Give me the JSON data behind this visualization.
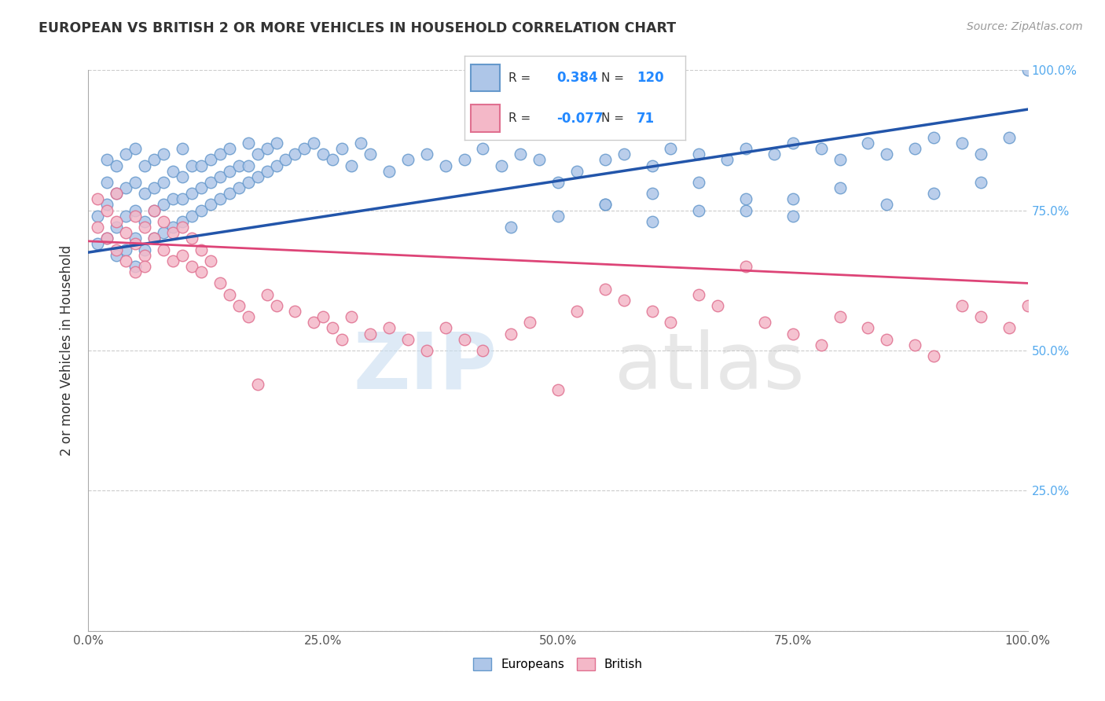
{
  "title": "EUROPEAN VS BRITISH 2 OR MORE VEHICLES IN HOUSEHOLD CORRELATION CHART",
  "source": "Source: ZipAtlas.com",
  "ylabel": "2 or more Vehicles in Household",
  "xlim": [
    0.0,
    1.0
  ],
  "ylim": [
    0.0,
    1.0
  ],
  "x_ticks": [
    0.0,
    0.25,
    0.5,
    0.75,
    1.0
  ],
  "y_ticks": [
    0.0,
    0.25,
    0.5,
    0.75,
    1.0
  ],
  "x_tick_labels": [
    "0.0%",
    "25.0%",
    "50.0%",
    "75.0%",
    "100.0%"
  ],
  "y_tick_labels": [
    "",
    "25.0%",
    "50.0%",
    "75.0%",
    "100.0%"
  ],
  "european_color": "#aec6e8",
  "british_color": "#f4b8c8",
  "european_edge_color": "#6699cc",
  "british_edge_color": "#e07090",
  "european_line_color": "#2255aa",
  "british_line_color": "#dd4477",
  "R_european": 0.384,
  "N_european": 120,
  "R_british": -0.077,
  "N_british": 71,
  "background_color": "#ffffff",
  "watermark_1": "ZIP",
  "watermark_2": "atlas",
  "eu_x": [
    0.01,
    0.01,
    0.02,
    0.02,
    0.02,
    0.02,
    0.03,
    0.03,
    0.03,
    0.03,
    0.04,
    0.04,
    0.04,
    0.04,
    0.05,
    0.05,
    0.05,
    0.05,
    0.05,
    0.06,
    0.06,
    0.06,
    0.06,
    0.07,
    0.07,
    0.07,
    0.07,
    0.08,
    0.08,
    0.08,
    0.08,
    0.09,
    0.09,
    0.09,
    0.1,
    0.1,
    0.1,
    0.1,
    0.11,
    0.11,
    0.11,
    0.12,
    0.12,
    0.12,
    0.13,
    0.13,
    0.13,
    0.14,
    0.14,
    0.14,
    0.15,
    0.15,
    0.15,
    0.16,
    0.16,
    0.17,
    0.17,
    0.17,
    0.18,
    0.18,
    0.19,
    0.19,
    0.2,
    0.2,
    0.21,
    0.22,
    0.23,
    0.24,
    0.25,
    0.26,
    0.27,
    0.28,
    0.29,
    0.3,
    0.32,
    0.34,
    0.36,
    0.38,
    0.4,
    0.42,
    0.44,
    0.46,
    0.48,
    0.5,
    0.52,
    0.55,
    0.57,
    0.6,
    0.62,
    0.65,
    0.68,
    0.7,
    0.73,
    0.75,
    0.78,
    0.8,
    0.83,
    0.85,
    0.88,
    0.9,
    0.93,
    0.95,
    0.98,
    1.0,
    0.55,
    0.6,
    0.65,
    0.7,
    0.75,
    0.8,
    0.85,
    0.9,
    0.95,
    0.45,
    0.5,
    0.55,
    0.6,
    0.65,
    0.7,
    0.75
  ],
  "eu_y": [
    0.69,
    0.74,
    0.7,
    0.76,
    0.8,
    0.84,
    0.67,
    0.72,
    0.78,
    0.83,
    0.68,
    0.74,
    0.79,
    0.85,
    0.65,
    0.7,
    0.75,
    0.8,
    0.86,
    0.68,
    0.73,
    0.78,
    0.83,
    0.7,
    0.75,
    0.79,
    0.84,
    0.71,
    0.76,
    0.8,
    0.85,
    0.72,
    0.77,
    0.82,
    0.73,
    0.77,
    0.81,
    0.86,
    0.74,
    0.78,
    0.83,
    0.75,
    0.79,
    0.83,
    0.76,
    0.8,
    0.84,
    0.77,
    0.81,
    0.85,
    0.78,
    0.82,
    0.86,
    0.79,
    0.83,
    0.8,
    0.83,
    0.87,
    0.81,
    0.85,
    0.82,
    0.86,
    0.83,
    0.87,
    0.84,
    0.85,
    0.86,
    0.87,
    0.85,
    0.84,
    0.86,
    0.83,
    0.87,
    0.85,
    0.82,
    0.84,
    0.85,
    0.83,
    0.84,
    0.86,
    0.83,
    0.85,
    0.84,
    0.8,
    0.82,
    0.84,
    0.85,
    0.83,
    0.86,
    0.85,
    0.84,
    0.86,
    0.85,
    0.87,
    0.86,
    0.84,
    0.87,
    0.85,
    0.86,
    0.88,
    0.87,
    0.85,
    0.88,
    1.0,
    0.76,
    0.78,
    0.8,
    0.75,
    0.77,
    0.79,
    0.76,
    0.78,
    0.8,
    0.72,
    0.74,
    0.76,
    0.73,
    0.75,
    0.77,
    0.74
  ],
  "br_x": [
    0.01,
    0.01,
    0.02,
    0.02,
    0.03,
    0.03,
    0.03,
    0.04,
    0.04,
    0.05,
    0.05,
    0.05,
    0.06,
    0.06,
    0.06,
    0.07,
    0.07,
    0.08,
    0.08,
    0.09,
    0.09,
    0.1,
    0.1,
    0.11,
    0.11,
    0.12,
    0.12,
    0.13,
    0.14,
    0.15,
    0.16,
    0.17,
    0.18,
    0.19,
    0.2,
    0.22,
    0.24,
    0.25,
    0.26,
    0.27,
    0.28,
    0.3,
    0.32,
    0.34,
    0.36,
    0.38,
    0.4,
    0.42,
    0.45,
    0.47,
    0.5,
    0.52,
    0.55,
    0.57,
    0.6,
    0.62,
    0.65,
    0.67,
    0.7,
    0.72,
    0.75,
    0.78,
    0.8,
    0.83,
    0.85,
    0.88,
    0.9,
    0.93,
    0.95,
    0.98,
    1.0
  ],
  "br_y": [
    0.72,
    0.77,
    0.7,
    0.75,
    0.68,
    0.73,
    0.78,
    0.66,
    0.71,
    0.64,
    0.69,
    0.74,
    0.67,
    0.72,
    0.65,
    0.7,
    0.75,
    0.68,
    0.73,
    0.66,
    0.71,
    0.67,
    0.72,
    0.65,
    0.7,
    0.64,
    0.68,
    0.66,
    0.62,
    0.6,
    0.58,
    0.56,
    0.44,
    0.6,
    0.58,
    0.57,
    0.55,
    0.56,
    0.54,
    0.52,
    0.56,
    0.53,
    0.54,
    0.52,
    0.5,
    0.54,
    0.52,
    0.5,
    0.53,
    0.55,
    0.43,
    0.57,
    0.61,
    0.59,
    0.57,
    0.55,
    0.6,
    0.58,
    0.65,
    0.55,
    0.53,
    0.51,
    0.56,
    0.54,
    0.52,
    0.51,
    0.49,
    0.58,
    0.56,
    0.54,
    0.58
  ]
}
